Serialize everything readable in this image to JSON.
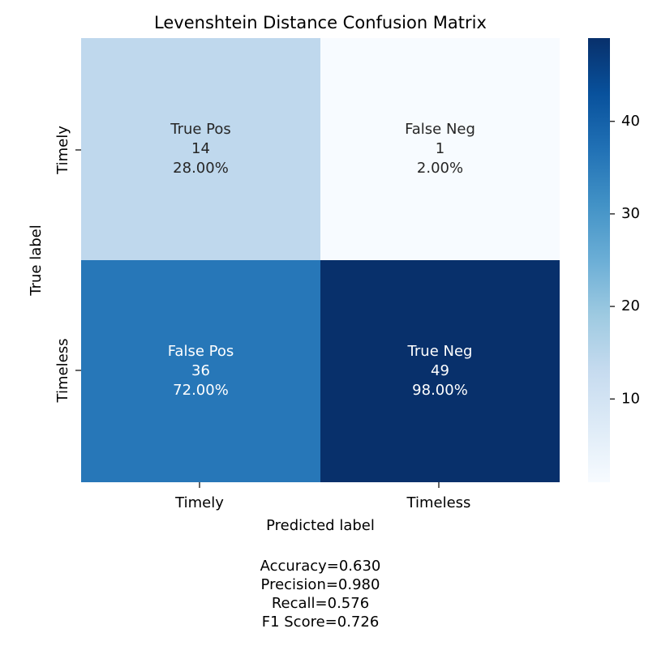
{
  "chart_data": {
    "type": "heatmap",
    "title": "Levenshtein Distance Confusion Matrix",
    "xlabel": "Predicted label",
    "ylabel": "True label",
    "row_labels": [
      "Timely",
      "Timeless"
    ],
    "col_labels": [
      "Timely",
      "Timeless"
    ],
    "cells": [
      [
        {
          "name": "True Pos",
          "count": "14",
          "percent": "28.00%",
          "value": 14
        },
        {
          "name": "False Neg",
          "count": "1",
          "percent": "2.00%",
          "value": 1
        }
      ],
      [
        {
          "name": "False Pos",
          "count": "36",
          "percent": "72.00%",
          "value": 36
        },
        {
          "name": "True Neg",
          "count": "49",
          "percent": "98.00%",
          "value": 49
        }
      ]
    ],
    "colormap": "Blues",
    "vmin": 1,
    "vmax": 49,
    "colorbar_ticks": [
      10,
      20,
      30,
      40
    ],
    "colorbar_tick_labels": [
      "10",
      "20",
      "30",
      "40"
    ],
    "metrics": [
      "Accuracy=0.630",
      "Precision=0.980",
      "Recall=0.576",
      "F1 Score=0.726"
    ]
  }
}
